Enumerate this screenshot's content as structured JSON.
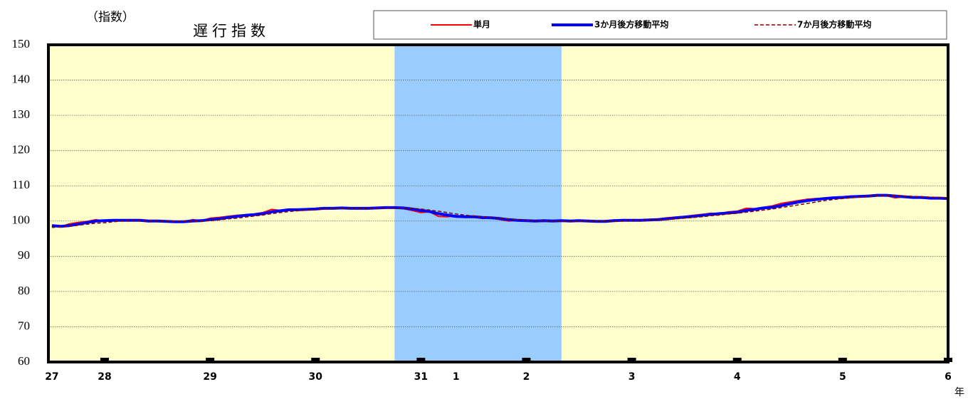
{
  "chart_data": {
    "type": "line",
    "title": "遅行指数",
    "y_label": "（指数）",
    "x_unit": "年",
    "xlim": [
      5.6,
      108
    ],
    "xticks": [
      {
        "value": 6,
        "label": "27"
      },
      {
        "value": 12,
        "label": "28"
      },
      {
        "value": 24,
        "label": "29"
      },
      {
        "value": 36,
        "label": "30"
      },
      {
        "value": 48,
        "label": "31"
      },
      {
        "value": 52,
        "label": "1"
      },
      {
        "value": 60,
        "label": "2"
      },
      {
        "value": 72,
        "label": "3"
      },
      {
        "value": 84,
        "label": "4"
      },
      {
        "value": 96,
        "label": "5"
      },
      {
        "value": 108,
        "label": "6"
      }
    ],
    "ylim": [
      60,
      150
    ],
    "yticks": [
      60,
      70,
      80,
      90,
      100,
      110,
      120,
      130,
      140,
      150
    ],
    "grid": true,
    "shaded_range": [
      45,
      64
    ],
    "shade_color": "#99ccff",
    "background": "#ffffcc",
    "x": [
      6,
      7,
      8,
      9,
      10,
      11,
      12,
      13,
      14,
      15,
      16,
      17,
      18,
      19,
      20,
      21,
      22,
      23,
      24,
      25,
      26,
      27,
      28,
      29,
      30,
      31,
      32,
      33,
      34,
      35,
      36,
      37,
      38,
      39,
      40,
      41,
      42,
      43,
      44,
      45,
      46,
      47,
      48,
      49,
      50,
      51,
      52,
      53,
      54,
      55,
      56,
      57,
      58,
      59,
      60,
      61,
      62,
      63,
      64,
      65,
      66,
      67,
      68,
      69,
      70,
      71,
      72,
      73,
      74,
      75,
      76,
      77,
      78,
      79,
      80,
      81,
      82,
      83,
      84,
      85,
      86,
      87,
      88,
      89,
      90,
      91,
      92,
      93,
      94,
      95,
      96,
      97,
      98,
      99,
      100,
      101,
      102,
      103,
      104,
      105,
      106,
      107,
      108
    ],
    "series": [
      {
        "name": "単月",
        "color": "#ff0000",
        "width": 2,
        "dash": false,
        "values": [
          98.6,
          98.4,
          99.2,
          99.6,
          99.9,
          100.4,
          100.0,
          100.2,
          100.3,
          100.1,
          100.2,
          99.8,
          100.0,
          99.9,
          99.7,
          99.8,
          100.4,
          100.1,
          100.8,
          101.0,
          101.3,
          101.6,
          101.8,
          102.0,
          102.4,
          103.3,
          103.0,
          103.2,
          103.4,
          103.3,
          103.6,
          103.8,
          103.5,
          103.7,
          103.5,
          103.7,
          103.6,
          103.8,
          103.9,
          103.8,
          103.5,
          103.0,
          102.4,
          102.6,
          101.3,
          101.2,
          101.5,
          101.0,
          101.2,
          100.7,
          100.9,
          100.4,
          100.0,
          100.2,
          100.1,
          99.8,
          100.3,
          99.9,
          100.1,
          100.0,
          100.2,
          99.9,
          99.8,
          100.1,
          100.3,
          100.2,
          100.1,
          100.3,
          100.4,
          100.6,
          100.9,
          101.1,
          101.3,
          101.6,
          101.9,
          102.2,
          102.1,
          102.6,
          102.8,
          103.6,
          103.5,
          103.9,
          104.3,
          105.0,
          105.4,
          105.8,
          106.2,
          106.4,
          106.5,
          106.8,
          106.9,
          107.1,
          107.0,
          107.3,
          107.5,
          107.2,
          106.6,
          106.9,
          106.6,
          106.5,
          106.4,
          106.5,
          106.4
        ]
      },
      {
        "name": "3か月後方移動平均",
        "color": "#0000ff",
        "width": 4,
        "dash": false,
        "values": [
          98.7,
          98.5,
          98.7,
          99.1,
          99.6,
          100.0,
          100.1,
          100.2,
          100.2,
          100.2,
          100.2,
          100.0,
          100.0,
          99.9,
          99.8,
          99.8,
          100.0,
          100.1,
          100.4,
          100.6,
          101.0,
          101.3,
          101.6,
          101.8,
          102.1,
          102.6,
          102.9,
          103.2,
          103.2,
          103.3,
          103.4,
          103.6,
          103.6,
          103.7,
          103.6,
          103.6,
          103.6,
          103.7,
          103.8,
          103.8,
          103.7,
          103.4,
          103.0,
          102.7,
          102.1,
          101.7,
          101.3,
          101.2,
          101.2,
          101.0,
          100.9,
          100.7,
          100.4,
          100.2,
          100.1,
          100.0,
          100.1,
          100.0,
          100.1,
          100.0,
          100.1,
          100.0,
          99.9,
          99.9,
          100.1,
          100.2,
          100.2,
          100.2,
          100.3,
          100.4,
          100.6,
          100.9,
          101.1,
          101.3,
          101.6,
          101.9,
          102.1,
          102.3,
          102.5,
          103.0,
          103.3,
          103.7,
          103.9,
          104.4,
          104.9,
          105.4,
          105.8,
          106.1,
          106.4,
          106.6,
          106.7,
          106.9,
          107.0,
          107.1,
          107.3,
          107.3,
          107.1,
          106.9,
          106.7,
          106.7,
          106.5,
          106.5,
          106.4
        ]
      },
      {
        "name": "7か月後方移動平均",
        "color": "#800000",
        "width": 1.5,
        "dash": true,
        "values": [
          98.2,
          98.3,
          98.5,
          98.8,
          99.1,
          99.4,
          99.5,
          99.8,
          100.0,
          100.1,
          100.1,
          100.1,
          100.1,
          100.0,
          99.9,
          99.9,
          99.9,
          100.0,
          100.1,
          100.3,
          100.6,
          100.8,
          101.1,
          101.4,
          101.7,
          102.1,
          102.4,
          102.7,
          102.9,
          103.1,
          103.3,
          103.4,
          103.5,
          103.6,
          103.6,
          103.6,
          103.6,
          103.7,
          103.7,
          103.7,
          103.7,
          103.6,
          103.4,
          103.1,
          102.8,
          102.4,
          102.0,
          101.7,
          101.4,
          101.2,
          101.0,
          100.8,
          100.6,
          100.4,
          100.2,
          100.1,
          100.1,
          100.0,
          100.0,
          100.0,
          100.0,
          100.0,
          100.0,
          99.9,
          100.0,
          100.0,
          100.1,
          100.1,
          100.2,
          100.3,
          100.4,
          100.6,
          100.8,
          101.0,
          101.2,
          101.5,
          101.7,
          102.0,
          102.2,
          102.5,
          102.8,
          103.1,
          103.4,
          103.8,
          104.2,
          104.6,
          105.0,
          105.4,
          105.8,
          106.1,
          106.4,
          106.6,
          106.8,
          107.0,
          107.1,
          107.2,
          107.2,
          107.1,
          107.0,
          106.9,
          106.8,
          106.7,
          106.6
        ]
      }
    ]
  }
}
